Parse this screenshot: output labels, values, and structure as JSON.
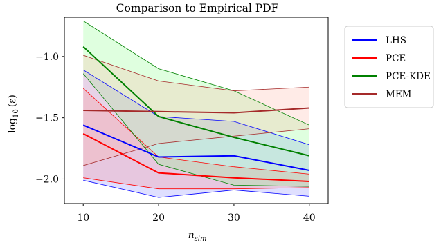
{
  "chart_data": {
    "type": "line",
    "title": "Comparison to Empirical PDF",
    "xlabel_main": "n",
    "xlabel_sub": "sim",
    "ylabel_prefix": "log",
    "ylabel_sub": "10",
    "ylabel_arg": "(ε)",
    "x": [
      10,
      20,
      30,
      40
    ],
    "xticks": [
      10,
      20,
      30,
      40
    ],
    "xtick_labels": [
      "10",
      "20",
      "30",
      "40"
    ],
    "yticks": [
      -2.0,
      -1.5,
      -1.0
    ],
    "ytick_labels": [
      "−2.0",
      "−1.5",
      "−1.0"
    ],
    "xlim": [
      7.5,
      42.5
    ],
    "ylim": [
      -2.2,
      -0.68
    ],
    "grid": false,
    "legend_position": "outside-right",
    "series": [
      {
        "name": "LHS",
        "color": "#0000ff",
        "fill": "#7f7fff",
        "mean": [
          -1.56,
          -1.82,
          -1.81,
          -1.93
        ],
        "lower": [
          -2.01,
          -2.15,
          -2.09,
          -2.14
        ],
        "upper": [
          -1.11,
          -1.49,
          -1.53,
          -1.72
        ]
      },
      {
        "name": "PCE",
        "color": "#ff0000",
        "fill": "#ff7f7f",
        "mean": [
          -1.63,
          -1.95,
          -1.99,
          -2.02
        ],
        "lower": [
          -1.99,
          -2.08,
          -2.08,
          -2.07
        ],
        "upper": [
          -1.26,
          -1.82,
          -1.9,
          -1.96
        ]
      },
      {
        "name": "PCE-KDE",
        "color": "#008000",
        "fill": "#7fff7f",
        "mean": [
          -0.92,
          -1.49,
          -1.66,
          -1.81
        ],
        "lower": [
          -1.14,
          -1.88,
          -2.05,
          -2.06
        ],
        "upper": [
          -0.71,
          -1.1,
          -1.28,
          -1.56
        ]
      },
      {
        "name": "MEM",
        "color": "#a52a2a",
        "fill": "#ffb0a0",
        "mean": [
          -1.44,
          -1.45,
          -1.46,
          -1.42
        ],
        "lower": [
          -1.89,
          -1.71,
          -1.65,
          -1.59
        ],
        "upper": [
          -0.99,
          -1.2,
          -1.28,
          -1.25
        ]
      }
    ]
  }
}
